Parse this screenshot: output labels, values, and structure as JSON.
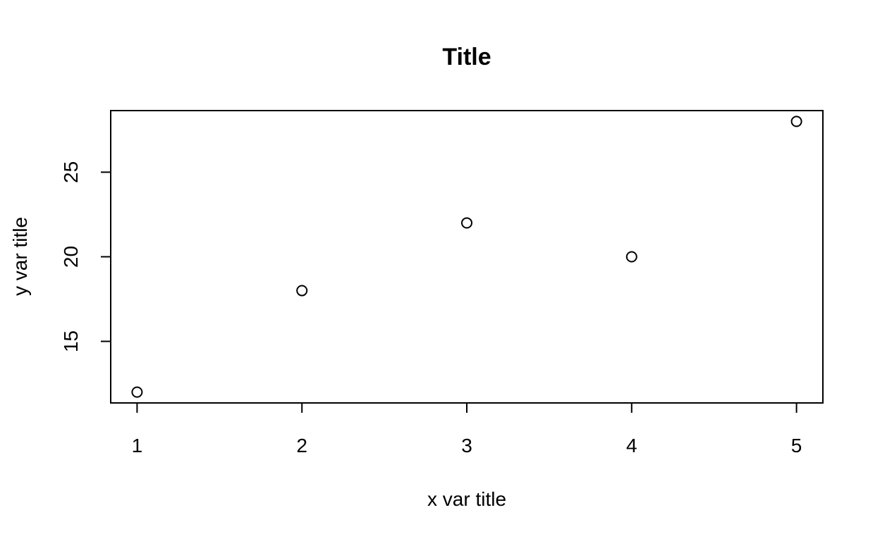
{
  "chart_data": {
    "type": "scatter",
    "title": "Title",
    "xlabel": "x var title",
    "ylabel": "y var title",
    "x": [
      1,
      2,
      3,
      4,
      5
    ],
    "y": [
      12,
      18,
      22,
      20,
      28
    ],
    "xlim": [
      0.84,
      5.16
    ],
    "ylim": [
      11.36,
      28.64
    ],
    "xticks": [
      1,
      2,
      3,
      4,
      5
    ],
    "yticks": [
      15,
      20,
      25
    ],
    "grid": false,
    "point_style": "open-circle",
    "colors": {
      "axis": "#000000",
      "points": "#000000",
      "background": "#ffffff"
    }
  }
}
